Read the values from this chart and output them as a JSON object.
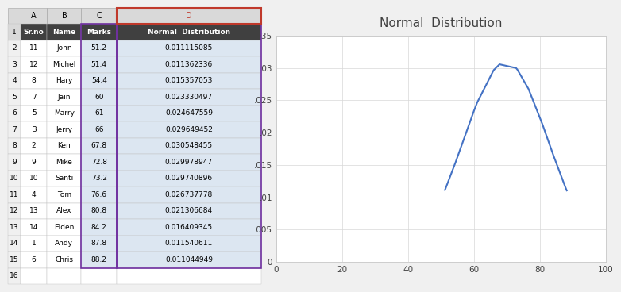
{
  "table": {
    "headers": [
      "Sr.no",
      "Name",
      "Marks",
      "Normal  Distribution"
    ],
    "rows": [
      [
        11,
        "John",
        51.2,
        0.011115085
      ],
      [
        12,
        "Michel",
        51.4,
        0.011362336
      ],
      [
        8,
        "Hary",
        54.4,
        0.015357053
      ],
      [
        7,
        "Jain",
        60,
        0.023330497
      ],
      [
        5,
        "Marry",
        61,
        0.024647559
      ],
      [
        3,
        "Jerry",
        66,
        0.029649452
      ],
      [
        2,
        "Ken",
        67.8,
        0.030548455
      ],
      [
        9,
        "Mike",
        72.8,
        0.029978947
      ],
      [
        10,
        "Santi",
        73.2,
        0.029740896
      ],
      [
        4,
        "Tom",
        76.6,
        0.026737778
      ],
      [
        13,
        "Alex",
        80.8,
        0.021306684
      ],
      [
        14,
        "Elden",
        84.2,
        0.016409345
      ],
      [
        1,
        "Andy",
        87.8,
        0.011540611
      ],
      [
        6,
        "Chris",
        88.2,
        0.011044949
      ]
    ]
  },
  "chart": {
    "title": "Normal  Distribution",
    "x_values": [
      51.2,
      51.4,
      54.4,
      60,
      61,
      66,
      67.8,
      72.8,
      73.2,
      76.6,
      80.8,
      84.2,
      87.8,
      88.2
    ],
    "y_values": [
      0.011115085,
      0.011362336,
      0.015357053,
      0.023330497,
      0.024647559,
      0.029649452,
      0.030548455,
      0.029978947,
      0.029740896,
      0.026737778,
      0.021306684,
      0.016409345,
      0.011540611,
      0.011044949
    ],
    "line_color": "#4472C4",
    "xlim": [
      0,
      100
    ],
    "ylim": [
      0,
      0.035
    ],
    "xticks": [
      0,
      20,
      40,
      60,
      80,
      100
    ],
    "yticks": [
      0,
      0.005,
      0.01,
      0.015,
      0.02,
      0.025,
      0.03,
      0.035
    ],
    "ytick_labels": [
      "0",
      ".005",
      ".01",
      ".015",
      ".02",
      ".025",
      ".03",
      ".035"
    ]
  },
  "excel_bg": "#f0f0f0",
  "col_header_bg": "#d9d9d9",
  "col_header_fg": "#000000",
  "header_bg": "#404040",
  "header_fg": "#ffffff",
  "cell_bg_light": "#dce6f1",
  "cell_bg_white": "#ffffff",
  "font_size": 7
}
